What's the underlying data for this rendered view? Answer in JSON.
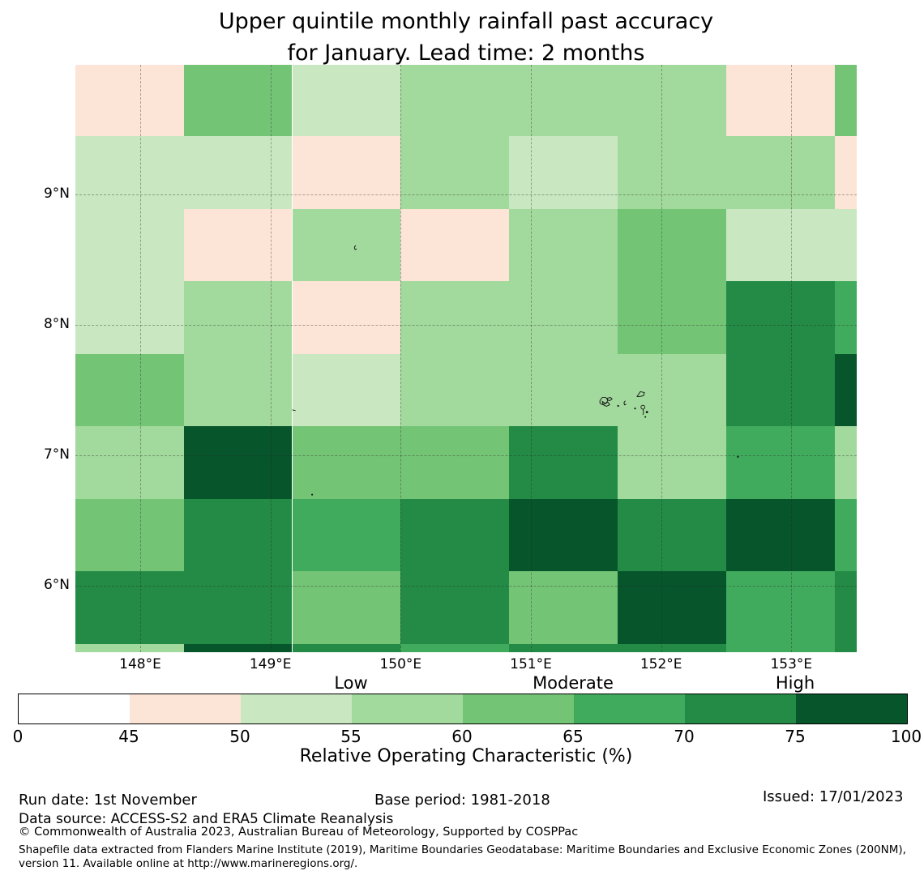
{
  "title": {
    "line1": "Upper quintile monthly rainfall past accuracy",
    "line2": "for January. Lead time: 2 months"
  },
  "chart_data": {
    "type": "heatmap",
    "title": "Upper quintile monthly rainfall past accuracy for January. Lead time: 2 months",
    "xlabel": "Longitude",
    "ylabel": "Latitude",
    "lon_range": [
      147.502,
      153.502
    ],
    "lat_range": [
      5.493,
      9.993
    ],
    "x_ticks": [
      {
        "label": "148°E",
        "lon": 148
      },
      {
        "label": "149°E",
        "lon": 149
      },
      {
        "label": "150°E",
        "lon": 150
      },
      {
        "label": "151°E",
        "lon": 151
      },
      {
        "label": "152°E",
        "lon": 152
      },
      {
        "label": "153°E",
        "lon": 153
      }
    ],
    "y_ticks": [
      {
        "label": "9°N",
        "lat": 9
      },
      {
        "label": "8°N",
        "lat": 8
      },
      {
        "label": "7°N",
        "lat": 7
      },
      {
        "label": "6°N",
        "lat": 6
      }
    ],
    "grid_on": true,
    "lon_edges": [
      147.502,
      148.333,
      149.167,
      150.0,
      150.833,
      151.667,
      152.5,
      153.333,
      153.502
    ],
    "lat_edges": [
      9.993,
      9.444,
      8.889,
      8.333,
      7.778,
      7.222,
      6.667,
      6.111,
      5.556,
      5.493
    ],
    "bin_colors": {
      "0-45": "#ffffff",
      "45-50": "#fce5d7",
      "50-55": "#c9e8c2",
      "55-60": "#a2d99c",
      "60-65": "#74c476",
      "65-70": "#41ab5d",
      "70-75": "#238b45",
      "75-100": "#06552b"
    },
    "cells": [
      [
        "45-50",
        "60-65",
        "50-55",
        "55-60",
        "55-60",
        "55-60",
        "45-50",
        "60-65"
      ],
      [
        "50-55",
        "50-55",
        "45-50",
        "55-60",
        "50-55",
        "55-60",
        "55-60",
        "45-50"
      ],
      [
        "50-55",
        "45-50",
        "55-60",
        "45-50",
        "55-60",
        "60-65",
        "50-55",
        "50-55"
      ],
      [
        "50-55",
        "55-60",
        "45-50",
        "55-60",
        "55-60",
        "60-65",
        "70-75",
        "65-70"
      ],
      [
        "60-65",
        "55-60",
        "50-55",
        "55-60",
        "55-60",
        "55-60",
        "70-75",
        "75-100"
      ],
      [
        "55-60",
        "75-100",
        "60-65",
        "60-65",
        "70-75",
        "55-60",
        "65-70",
        "55-60"
      ],
      [
        "60-65",
        "70-75",
        "65-70",
        "70-75",
        "75-100",
        "70-75",
        "75-100",
        "65-70"
      ],
      [
        "70-75",
        "70-75",
        "60-65",
        "70-75",
        "60-65",
        "75-100",
        "65-70",
        "70-75"
      ],
      [
        "55-60",
        "75-100",
        "70-75",
        "65-70",
        "70-75",
        "70-75",
        "65-70",
        "70-75"
      ]
    ],
    "islands": [
      {
        "kind": "atoll-cluster",
        "lon": 151.53,
        "lat": 7.42
      },
      {
        "kind": "dot",
        "lon": 151.67,
        "lat": 7.38
      },
      {
        "kind": "islet",
        "lon": 151.72,
        "lat": 7.4
      },
      {
        "kind": "dot",
        "lon": 151.8,
        "lat": 7.36
      },
      {
        "kind": "hook",
        "lon": 151.84,
        "lat": 7.47
      },
      {
        "kind": "ring-tail",
        "lon": 151.86,
        "lat": 7.37
      },
      {
        "kind": "islet",
        "lon": 149.65,
        "lat": 8.59
      },
      {
        "kind": "dash",
        "lon": 149.18,
        "lat": 7.35
      },
      {
        "kind": "dot",
        "lon": 149.32,
        "lat": 6.7
      },
      {
        "kind": "dot",
        "lon": 152.59,
        "lat": 6.99
      }
    ],
    "legend_position": "bottom"
  },
  "colorbar": {
    "label": "Relative Operating Characteristic (%)",
    "tick_labels": [
      "0",
      "45",
      "50",
      "55",
      "60",
      "65",
      "70",
      "75",
      "100"
    ],
    "segments": [
      {
        "bin": "0-45",
        "color": "#ffffff"
      },
      {
        "bin": "45-50",
        "color": "#fce5d7"
      },
      {
        "bin": "50-55",
        "color": "#c9e8c2"
      },
      {
        "bin": "55-60",
        "color": "#a2d99c"
      },
      {
        "bin": "60-65",
        "color": "#74c476"
      },
      {
        "bin": "65-70",
        "color": "#41ab5d"
      },
      {
        "bin": "70-75",
        "color": "#238b45"
      },
      {
        "bin": "75-100",
        "color": "#06552b"
      }
    ],
    "categories": [
      {
        "label": "Low",
        "tick_index": 3
      },
      {
        "label": "Moderate",
        "tick_index": 5
      },
      {
        "label": "High",
        "tick_index": 7
      }
    ]
  },
  "footer": {
    "run_date": "Run date: 1st November",
    "base_period": "Base period: 1981-2018",
    "issued": "Issued: 17/01/2023",
    "data_source": "Data source: ACCESS-S2 and ERA5 Climate Reanalysis",
    "copyright": "© Commonwealth of Australia 2023, Australian Bureau of Meteorology, Supported by COSPPac",
    "shapefile_note": "Shapefile data extracted from Flanders Marine Institute (2019), Maritime Boundaries Geodatabase: Maritime Boundaries and Exclusive Economic Zones (200NM), version 11. Available online at http://www.marineregions.org/."
  }
}
